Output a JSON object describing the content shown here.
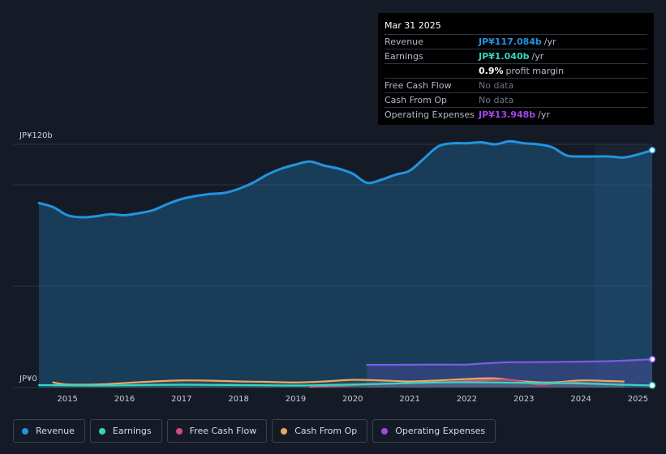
{
  "colors": {
    "background": "#151b26",
    "revenue": "#2394df",
    "earnings": "#33d6c0",
    "free_cash_flow": "#d14d7a",
    "cash_from_op": "#e9a963",
    "operating_expenses": "#a146e8"
  },
  "tooltip": {
    "date": "Mar 31 2025",
    "rows": [
      {
        "label": "Revenue",
        "value": "JP¥117.084b",
        "unit": "/yr"
      },
      {
        "label": "Earnings",
        "value": "JP¥1.040b",
        "unit": "/yr"
      },
      {
        "label": "",
        "value": "0.9%",
        "unit": "profit margin"
      },
      {
        "label": "Free Cash Flow",
        "value": "No data",
        "unit": ""
      },
      {
        "label": "Cash From Op",
        "value": "No data",
        "unit": ""
      },
      {
        "label": "Operating Expenses",
        "value": "JP¥13.948b",
        "unit": "/yr"
      }
    ]
  },
  "legend": [
    {
      "label": "Revenue",
      "icon": "revenue-dot-icon"
    },
    {
      "label": "Earnings",
      "icon": "earnings-dot-icon"
    },
    {
      "label": "Free Cash Flow",
      "icon": "free-cash-flow-dot-icon"
    },
    {
      "label": "Cash From Op",
      "icon": "cash-from-op-dot-icon"
    },
    {
      "label": "Operating Expenses",
      "icon": "operating-expenses-dot-icon"
    }
  ],
  "chart_data": {
    "type": "area",
    "title": "",
    "xlabel": "",
    "ylabel": "",
    "ylim": [
      0,
      120
    ],
    "xlim": [
      2014.5,
      2025.25
    ],
    "y_tick_labels": [
      {
        "value": 120,
        "label": "JP¥120b"
      },
      {
        "value": 0,
        "label": "JP¥0"
      }
    ],
    "x_ticks": [
      2015,
      2016,
      2017,
      2018,
      2019,
      2020,
      2021,
      2022,
      2023,
      2024,
      2025
    ],
    "x_tick_labels": [
      "2015",
      "2016",
      "2017",
      "2018",
      "2019",
      "2020",
      "2021",
      "2022",
      "2023",
      "2024",
      "2025"
    ],
    "highlight_start": 2024.25,
    "series": [
      {
        "name": "Revenue",
        "key": "revenue",
        "x": [
          2014.5,
          2014.75,
          2015.0,
          2015.25,
          2015.5,
          2015.75,
          2016.0,
          2016.25,
          2016.5,
          2016.75,
          2017.0,
          2017.25,
          2017.5,
          2017.75,
          2018.0,
          2018.25,
          2018.5,
          2018.75,
          2019.0,
          2019.25,
          2019.5,
          2019.75,
          2020.0,
          2020.25,
          2020.5,
          2020.75,
          2021.0,
          2021.25,
          2021.5,
          2021.75,
          2022.0,
          2022.25,
          2022.5,
          2022.75,
          2023.0,
          2023.25,
          2023.5,
          2023.75,
          2024.0,
          2024.25,
          2024.5,
          2024.75,
          2025.0,
          2025.25
        ],
        "values": [
          91,
          89,
          85,
          84,
          84.5,
          85.5,
          85,
          86,
          87.5,
          90.5,
          93,
          94.5,
          95.5,
          96,
          98,
          101,
          105,
          108,
          110,
          111.5,
          109.5,
          108,
          105.5,
          101,
          102.5,
          105,
          107,
          113,
          119,
          120.5,
          120.5,
          121,
          120,
          121.5,
          120.5,
          120,
          118.5,
          114.5,
          114,
          114,
          114,
          113.5,
          115,
          117.084
        ]
      },
      {
        "name": "Earnings",
        "key": "earnings",
        "x": [
          2014.5,
          2015.0,
          2015.5,
          2016.0,
          2016.5,
          2017.0,
          2017.5,
          2018.0,
          2018.5,
          2019.0,
          2019.5,
          2020.0,
          2020.5,
          2021.0,
          2021.5,
          2022.0,
          2022.5,
          2023.0,
          2023.5,
          2024.0,
          2024.5,
          2025.0,
          2025.25
        ],
        "values": [
          1.2,
          1.1,
          1.0,
          1.1,
          1.3,
          1.4,
          1.3,
          1.2,
          1.1,
          1.0,
          1.2,
          1.5,
          1.8,
          2.2,
          2.5,
          2.6,
          2.5,
          2.3,
          2.2,
          2.0,
          1.6,
          1.2,
          1.04
        ]
      },
      {
        "name": "Free Cash Flow",
        "key": "free_cash_flow",
        "x": [
          2019.25,
          2019.75,
          2020.25,
          2020.75,
          2021.25,
          2021.75,
          2022.25,
          2022.75,
          2023.25,
          2023.75,
          2024.25,
          2024.75
        ],
        "values": [
          0.3,
          0.8,
          1.5,
          2.0,
          2.3,
          2.8,
          3.5,
          3.8,
          1.5,
          2.5,
          2.0,
          1.2
        ]
      },
      {
        "name": "Cash From Op",
        "key": "cash_from_op",
        "x": [
          2014.75,
          2015.0,
          2015.5,
          2016.0,
          2016.5,
          2017.0,
          2017.5,
          2018.0,
          2018.5,
          2019.0,
          2019.5,
          2020.0,
          2020.5,
          2021.0,
          2021.5,
          2022.0,
          2022.5,
          2023.0,
          2023.5,
          2024.0,
          2024.5,
          2024.75
        ],
        "values": [
          2.5,
          1.5,
          1.5,
          2.2,
          3.0,
          3.5,
          3.4,
          3.0,
          2.8,
          2.5,
          3.0,
          3.8,
          3.5,
          3.0,
          3.5,
          4.2,
          4.5,
          3.0,
          2.5,
          3.5,
          3.2,
          3.0
        ]
      },
      {
        "name": "Operating Expenses",
        "key": "operating_expenses",
        "x": [
          2020.25,
          2020.75,
          2021.25,
          2021.75,
          2022.0,
          2022.25,
          2022.5,
          2022.75,
          2023.0,
          2023.5,
          2024.0,
          2024.5,
          2025.0,
          2025.25
        ],
        "values": [
          11.2,
          11.2,
          11.3,
          11.3,
          11.3,
          11.8,
          12.2,
          12.5,
          12.5,
          12.6,
          12.8,
          13.0,
          13.6,
          13.948
        ]
      }
    ]
  }
}
